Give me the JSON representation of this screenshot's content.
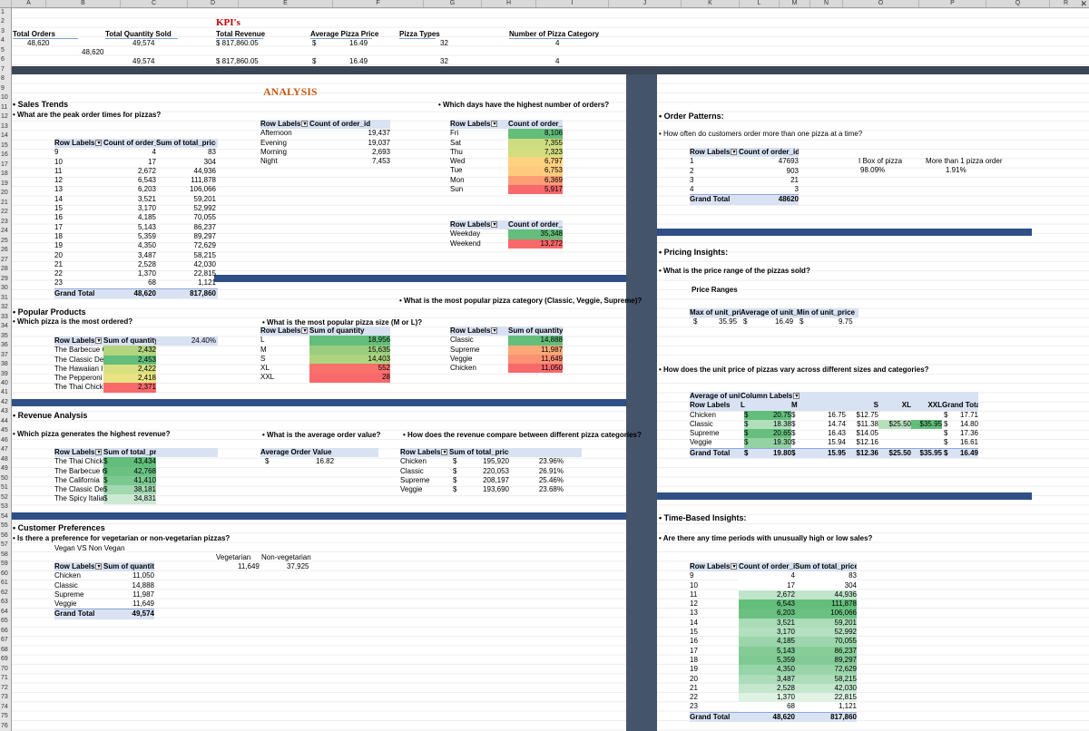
{
  "app": {
    "close_symbol": "✕"
  },
  "columns": [
    "A",
    "B",
    "C",
    "D",
    "E",
    "F",
    "G",
    "H",
    "I",
    "J",
    "K",
    "L",
    "M",
    "N",
    "O",
    "P",
    "Q",
    "R",
    "S",
    "T",
    "U",
    "V",
    "W"
  ],
  "rows": [
    "1",
    "2",
    "3",
    "4",
    "5",
    "6",
    "7",
    "8",
    "9",
    "10",
    "11",
    "12",
    "13",
    "14",
    "15",
    "16",
    "17",
    "18",
    "19",
    "20",
    "21",
    "22",
    "23",
    "24",
    "25",
    "26",
    "27",
    "28",
    "29",
    "30",
    "31",
    "32",
    "33",
    "34",
    "35",
    "36",
    "37",
    "38",
    "39",
    "40",
    "41",
    "42",
    "43",
    "44",
    "45",
    "46",
    "47",
    "48",
    "49",
    "50",
    "51",
    "52",
    "53",
    "54",
    "55",
    "56",
    "57",
    "58",
    "59",
    "60",
    "61",
    "62",
    "63",
    "64",
    "65",
    "66",
    "67",
    "68",
    "69",
    "70",
    "71",
    "72",
    "73",
    "74",
    "75",
    "76"
  ],
  "kpi": {
    "title": "KPI's",
    "headers": [
      "Total Orders",
      "Total Quantity Sold",
      "Total Revenue",
      "Average Pizza Price",
      "Pizza Types",
      "Number of Pizza Category"
    ],
    "row1": [
      "48,620",
      "49,574",
      "$ 817,860.05",
      "$",
      "16.49",
      "32",
      "4"
    ],
    "row2": [
      "48,620"
    ],
    "row3": [
      "49,574",
      "$ 817,860.05",
      "$",
      "16.49",
      "32",
      "4"
    ]
  },
  "analysis_title": "ANALYSIS",
  "sales": {
    "section": "• Sales Trends",
    "question": "• What are the peak order times for pizzas?",
    "hour_table": {
      "headers": [
        "Row Labels",
        "Count of order_id",
        "Sum of total_price"
      ],
      "rows": [
        [
          "9",
          "4",
          "83"
        ],
        [
          "10",
          "17",
          "304"
        ],
        [
          "11",
          "2,672",
          "44,936"
        ],
        [
          "12",
          "6,543",
          "111,878"
        ],
        [
          "13",
          "6,203",
          "106,066"
        ],
        [
          "14",
          "3,521",
          "59,201"
        ],
        [
          "15",
          "3,170",
          "52,992"
        ],
        [
          "16",
          "4,185",
          "70,055"
        ],
        [
          "17",
          "5,143",
          "86,237"
        ],
        [
          "18",
          "5,359",
          "89,297"
        ],
        [
          "19",
          "4,350",
          "72,629"
        ],
        [
          "20",
          "3,487",
          "58,215"
        ],
        [
          "21",
          "2,528",
          "42,030"
        ],
        [
          "22",
          "1,370",
          "22,815"
        ],
        [
          "23",
          "68",
          "1,121"
        ]
      ],
      "total": [
        "Grand Total",
        "48,620",
        "817,860"
      ]
    },
    "daypart_table": {
      "headers": [
        "Row Labels",
        "Count of order_id"
      ],
      "rows": [
        [
          "Afternoon",
          "19,437"
        ],
        [
          "Evening",
          "19,037"
        ],
        [
          "Morning",
          "2,693"
        ],
        [
          "Night",
          "7,453"
        ]
      ]
    }
  },
  "days": {
    "question": "• Which days have the highest number of orders?",
    "table": {
      "headers": [
        "Row Labels",
        "Count of order_id"
      ],
      "rows": [
        [
          "Fri",
          "8,106"
        ],
        [
          "Sat",
          "7,355"
        ],
        [
          "Thu",
          "7,323"
        ],
        [
          "Wed",
          "6,797"
        ],
        [
          "Tue",
          "6,753"
        ],
        [
          "Mon",
          "6,369"
        ],
        [
          "Sun",
          "5,917"
        ]
      ]
    },
    "week_table": {
      "headers": [
        "Row Labels",
        "Count of order_id"
      ],
      "rows": [
        [
          "Weekday",
          "35,348"
        ],
        [
          "Weekend",
          "13,272"
        ]
      ]
    }
  },
  "popular": {
    "section": "• Popular Products",
    "question": "• Which pizza is the most ordered?",
    "pizza_table": {
      "headers": [
        "Row Labels",
        "Sum of quantity"
      ],
      "rows": [
        [
          "The Barbecue C",
          "2,432"
        ],
        [
          "The Classic De",
          "2,453"
        ],
        [
          "The Hawaiian I",
          "2,422"
        ],
        [
          "The Pepperoni",
          "2,418"
        ],
        [
          "The Thai Chicke",
          "2,371"
        ]
      ],
      "note": "24.40%"
    },
    "size_question": "• What is the most popular pizza size (M or L)?",
    "size_table": {
      "headers": [
        "Row Labels",
        "Sum of quantity"
      ],
      "rows": [
        [
          "L",
          "18,956"
        ],
        [
          "M",
          "15,635"
        ],
        [
          "S",
          "14,403"
        ],
        [
          "XL",
          "552"
        ],
        [
          "XXL",
          "28"
        ]
      ]
    },
    "cat_question": "• What is the most popular pizza category (Classic, Veggie, Supreme)?",
    "cat_table": {
      "headers": [
        "Row Labels",
        "Sum of quantity"
      ],
      "rows": [
        [
          "Classic",
          "14,888"
        ],
        [
          "Supreme",
          "11,987"
        ],
        [
          "Veggie",
          "11,649"
        ],
        [
          "Chicken",
          "11,050"
        ]
      ]
    }
  },
  "revenue": {
    "section": "• Revenue Analysis",
    "question": "• Which pizza generates the highest revenue?",
    "rev_table": {
      "headers": [
        "Row Labels",
        "Sum of total_price"
      ],
      "rows": [
        [
          "The Thai Chicke",
          "$",
          "43,434"
        ],
        [
          "The Barbecue C",
          "$",
          "42,768"
        ],
        [
          "The California",
          "$",
          "41,410"
        ],
        [
          "The Classic De",
          "$",
          "38,181"
        ],
        [
          "The Spicy Italia",
          "$",
          "34,831"
        ]
      ]
    },
    "aov_question": "• What is the average order value?",
    "aov_header": "Average Order Value",
    "aov_value": [
      "$",
      "16.82"
    ],
    "cat_question": "• How does the revenue compare between different pizza categories?",
    "cat_table": {
      "headers": [
        "Row Labels",
        "Sum of total_price"
      ],
      "rows": [
        [
          "Chicken",
          "$",
          "195,920",
          "23.96%"
        ],
        [
          "Classic",
          "$",
          "220,053",
          "26.91%"
        ],
        [
          "Supreme",
          "$",
          "208,197",
          "25.46%"
        ],
        [
          "Veggie",
          "$",
          "193,690",
          "23.68%"
        ]
      ]
    }
  },
  "customer": {
    "section": "• Customer Preferences",
    "question": "• Is there a preference for vegetarian or non-vegetarian pizzas?",
    "subtitle": "Vegan VS Non Vegan",
    "veg_labels": [
      "Vegetarian",
      "Non-vegetarian"
    ],
    "veg_values": [
      "11,649",
      "37,925"
    ],
    "table": {
      "headers": [
        "Row Labels",
        "Sum of quantity"
      ],
      "rows": [
        [
          "Chicken",
          "11,050"
        ],
        [
          "Classic",
          "14,888"
        ],
        [
          "Supreme",
          "11,987"
        ],
        [
          "Veggie",
          "11,649"
        ]
      ],
      "total": [
        "Grand Total",
        "49,574"
      ]
    }
  },
  "order_patterns": {
    "section": "• Order Patterns:",
    "question": "• How often do customers order more than one pizza at a time?",
    "table": {
      "headers": [
        "Row Labels",
        "Count of order_id"
      ],
      "rows": [
        [
          "1",
          "47693"
        ],
        [
          "2",
          "903"
        ],
        [
          "3",
          "21"
        ],
        [
          "4",
          "3"
        ]
      ],
      "total": [
        "Grand Total",
        "48620"
      ]
    },
    "labels": [
      "I Box of pizza",
      "More than 1 pizza order"
    ],
    "values": [
      "98.09%",
      "1.91%"
    ]
  },
  "pricing": {
    "section": "• Pricing Insights:",
    "question": "• What is the price range of the pizzas sold?",
    "subtitle": "Price Ranges",
    "range_headers": [
      "Max of unit_pric",
      "Average of unit_pr",
      "Min of unit_price"
    ],
    "range_values": [
      "$",
      "35.95",
      "$",
      "16.49",
      "$",
      "9.75"
    ],
    "vary_question": "• How does the unit price of pizzas vary across different sizes and categories?",
    "matrix": {
      "corner": "Average of unit_",
      "col_labels": "Column Labels",
      "row_labels": "Row Labels",
      "sizes": [
        "L",
        "M",
        "S",
        "XL",
        "XXL",
        "Grand Total"
      ],
      "rows": [
        {
          "label": "Chicken",
          "L": "20.75",
          "M": "16.75",
          "S": "$12.75",
          "XL": "",
          "XXL": "",
          "GT": "17.71"
        },
        {
          "label": "Classic",
          "L": "18.38",
          "M": "14.74",
          "S": "$11.38",
          "XL": "$25.50",
          "XXL": "$35.95",
          "GT": "14.80"
        },
        {
          "label": "Supreme",
          "L": "20.65",
          "M": "16.43",
          "S": "$14.05",
          "XL": "",
          "XXL": "",
          "GT": "17.36"
        },
        {
          "label": "Veggie",
          "L": "19.30",
          "M": "15.94",
          "S": "$12.16",
          "XL": "",
          "XXL": "",
          "GT": "16.61"
        },
        {
          "label": "Grand Total",
          "L": "19.80",
          "M": "15.95",
          "S": "$12.36",
          "XL": "$25.50",
          "XXL": "$35.95",
          "GT": "16.49"
        }
      ],
      "currency": "$"
    }
  },
  "time": {
    "section": "• Time-Based Insights:",
    "question": "• Are there any time periods with unusually high or low sales?",
    "table": {
      "headers": [
        "Row Labels",
        "Count of order_id",
        "Sum of total_price"
      ],
      "rows": [
        [
          "9",
          "4",
          "83"
        ],
        [
          "10",
          "17",
          "304"
        ],
        [
          "11",
          "2,672",
          "44,936"
        ],
        [
          "12",
          "6,543",
          "111,878"
        ],
        [
          "13",
          "6,203",
          "106,066"
        ],
        [
          "14",
          "3,521",
          "59,201"
        ],
        [
          "15",
          "3,170",
          "52,992"
        ],
        [
          "16",
          "4,185",
          "70,055"
        ],
        [
          "17",
          "5,143",
          "86,237"
        ],
        [
          "18",
          "5,359",
          "89,297"
        ],
        [
          "19",
          "4,350",
          "72,629"
        ],
        [
          "20",
          "3,487",
          "58,215"
        ],
        [
          "21",
          "2,528",
          "42,030"
        ],
        [
          "22",
          "1,370",
          "22,815"
        ],
        [
          "23",
          "68",
          "1,121"
        ]
      ],
      "total": [
        "Grand Total",
        "48,620",
        "817,860"
      ]
    }
  },
  "colors": {
    "band": "#2f4f86",
    "panel": "#44546a",
    "header_fill": "#d9e2f3",
    "green_strong": "#63be7b",
    "green_light": "#c6e7c7",
    "yellow": "#ffeb84",
    "red": "#f8696b"
  }
}
